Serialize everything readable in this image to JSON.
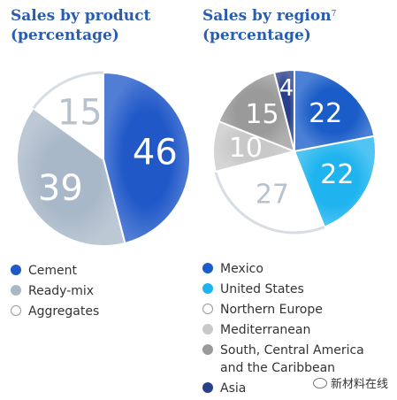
{
  "chart_data": [
    {
      "type": "pie",
      "title": "Sales by product",
      "subtitle": "(percentage)",
      "slices": [
        {
          "label": "Cement",
          "value": 46,
          "color": "#2058c8"
        },
        {
          "label": "Ready-mix",
          "value": 39,
          "color": "#a9b8c8"
        },
        {
          "label": "Aggregates",
          "value": 15,
          "color": "#ffffff"
        }
      ],
      "legend_position": "bottom"
    },
    {
      "type": "pie",
      "title": "Sales by region",
      "title_note": "7",
      "subtitle": "(percentage)",
      "slices": [
        {
          "label": "Mexico",
          "value": 22,
          "color": "#1a5cc8"
        },
        {
          "label": "United States",
          "value": 22,
          "color": "#1fb4ef"
        },
        {
          "label": "Northern Europe",
          "value": 27,
          "color": "#ffffff"
        },
        {
          "label": "Mediterranean",
          "value": 10,
          "color": "#c9c9c9"
        },
        {
          "label": "South, Central America\nand the Caribbean",
          "value": 15,
          "color": "#9a9a9a"
        },
        {
          "label": "Asia",
          "value": 4,
          "color": "#283f8a"
        }
      ],
      "legend_position": "bottom"
    }
  ],
  "watermark": "新材料在线"
}
